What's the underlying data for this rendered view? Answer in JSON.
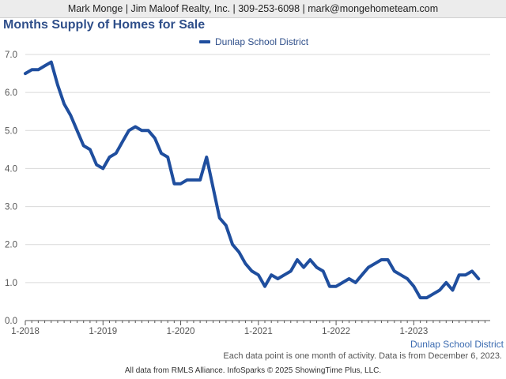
{
  "header": {
    "text": "Mark Monge | Jim Maloof Realty, Inc. | 309-253-6098 | mark@mongehometeam.com"
  },
  "footnote": "Each data point is one month of activity. Data is from December 6, 2023.",
  "footer": "All data from RMLS Alliance. InfoSparks © 2025 ShowingTime Plus, LLC.",
  "colors": {
    "series": "#1f4e9e",
    "grid": "#d9d9d9",
    "axis": "#555555"
  },
  "chart_data": {
    "type": "line",
    "title": "Months Supply of Homes for Sale",
    "xlabel": "",
    "ylabel": "",
    "ylim": [
      0,
      7
    ],
    "y_ticks": [
      "0.0",
      "1.0",
      "2.0",
      "3.0",
      "4.0",
      "5.0",
      "6.0",
      "7.0"
    ],
    "x_ticks": [
      "1-2018",
      "1-2019",
      "1-2020",
      "1-2021",
      "1-2022",
      "1-2023"
    ],
    "legend": "top-center",
    "grid": true,
    "series": [
      {
        "name": "Dunlap School District",
        "caption": "Dunlap School District",
        "x": [
          "2018-01",
          "2018-02",
          "2018-03",
          "2018-04",
          "2018-05",
          "2018-06",
          "2018-07",
          "2018-08",
          "2018-09",
          "2018-10",
          "2018-11",
          "2018-12",
          "2019-01",
          "2019-02",
          "2019-03",
          "2019-04",
          "2019-05",
          "2019-06",
          "2019-07",
          "2019-08",
          "2019-09",
          "2019-10",
          "2019-11",
          "2019-12",
          "2020-01",
          "2020-02",
          "2020-03",
          "2020-04",
          "2020-05",
          "2020-06",
          "2020-07",
          "2020-08",
          "2020-09",
          "2020-10",
          "2020-11",
          "2020-12",
          "2021-01",
          "2021-02",
          "2021-03",
          "2021-04",
          "2021-05",
          "2021-06",
          "2021-07",
          "2021-08",
          "2021-09",
          "2021-10",
          "2021-11",
          "2021-12",
          "2022-01",
          "2022-02",
          "2022-03",
          "2022-04",
          "2022-05",
          "2022-06",
          "2022-07",
          "2022-08",
          "2022-09",
          "2022-10",
          "2022-11",
          "2022-12",
          "2023-01",
          "2023-02",
          "2023-03",
          "2023-04",
          "2023-05",
          "2023-06",
          "2023-07",
          "2023-08",
          "2023-09",
          "2023-10",
          "2023-11"
        ],
        "values": [
          6.5,
          6.6,
          6.6,
          6.7,
          6.8,
          6.2,
          5.7,
          5.4,
          5.0,
          4.6,
          4.5,
          4.1,
          4.0,
          4.3,
          4.4,
          4.7,
          5.0,
          5.1,
          5.0,
          5.0,
          4.8,
          4.4,
          4.3,
          3.6,
          3.6,
          3.7,
          3.7,
          3.7,
          4.3,
          3.5,
          2.7,
          2.5,
          2.0,
          1.8,
          1.5,
          1.3,
          1.2,
          0.9,
          1.2,
          1.1,
          1.2,
          1.3,
          1.6,
          1.4,
          1.6,
          1.4,
          1.3,
          0.9,
          0.9,
          1.0,
          1.1,
          1.0,
          1.2,
          1.4,
          1.5,
          1.6,
          1.6,
          1.3,
          1.2,
          1.1,
          0.9,
          0.6,
          0.6,
          0.7,
          0.8,
          1.0,
          0.8,
          1.2,
          1.2,
          1.3,
          1.1
        ]
      }
    ]
  }
}
